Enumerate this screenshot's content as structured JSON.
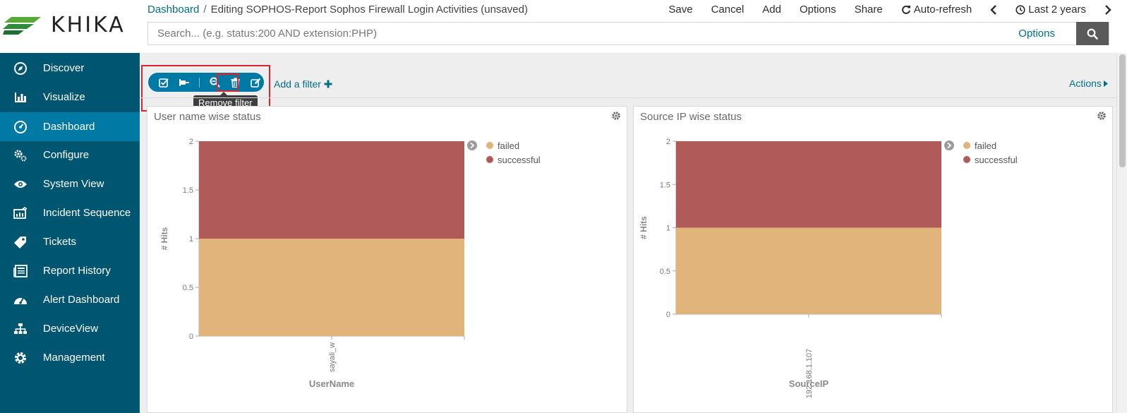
{
  "logo": {
    "text": "KHIKA"
  },
  "breadcrumb": {
    "root": "Dashboard",
    "separator": "/",
    "current": "Editing SOPHOS-Report Sophos Firewall Login Activities (unsaved)"
  },
  "top_menu": {
    "save": "Save",
    "cancel": "Cancel",
    "add": "Add",
    "options": "Options",
    "share": "Share",
    "auto_refresh": "Auto-refresh",
    "time_range": "Last 2 years"
  },
  "search": {
    "placeholder": "Search... (e.g. status:200 AND extension:PHP)",
    "options_label": "Options",
    "button_icon": "search-icon"
  },
  "sidebar": {
    "items": [
      {
        "label": "Discover",
        "icon": "compass-icon",
        "active": false
      },
      {
        "label": "Visualize",
        "icon": "bar-chart-icon",
        "active": false
      },
      {
        "label": "Dashboard",
        "icon": "dashboard-icon",
        "active": true
      },
      {
        "label": "Configure",
        "icon": "cogs-icon",
        "active": false
      },
      {
        "label": "System View",
        "icon": "eye-icon",
        "active": false
      },
      {
        "label": "Incident Sequence",
        "icon": "incident-chart-icon",
        "active": false
      },
      {
        "label": "Tickets",
        "icon": "tag-icon",
        "active": false
      },
      {
        "label": "Report History",
        "icon": "newspaper-icon",
        "active": false
      },
      {
        "label": "Alert Dashboard",
        "icon": "gauge-icon",
        "active": false
      },
      {
        "label": "DeviceView",
        "icon": "sitemap-icon",
        "active": false
      },
      {
        "label": "Management",
        "icon": "gear-icon",
        "active": false
      }
    ]
  },
  "filter": {
    "tooltip": "Remove filter",
    "add_filter_label": "Add a filter",
    "actions_label": "Actions"
  },
  "colors": {
    "failed": "#e0b47b",
    "successful": "#b05b5a",
    "sidebar_bg": "#005571",
    "active_nav": "#0079a5",
    "link": "#006e8a"
  },
  "chart_data": [
    {
      "type": "bar",
      "stacked": true,
      "title": "User name wise status",
      "xlabel": "UserName",
      "ylabel": "# Hits",
      "ylim": [
        0,
        2
      ],
      "yticks": [
        "0",
        "0.5",
        "1",
        "1.5",
        "2"
      ],
      "categories": [
        "sayali_w"
      ],
      "series": [
        {
          "name": "failed",
          "values": [
            1
          ]
        },
        {
          "name": "successful",
          "values": [
            1
          ]
        }
      ],
      "legend_position": "top-right"
    },
    {
      "type": "bar",
      "stacked": true,
      "title": "Source IP wise status",
      "xlabel": "SourceIP",
      "ylabel": "# Hits",
      "ylim": [
        0,
        2
      ],
      "yticks": [
        "0",
        "0.5",
        "1",
        "1.5",
        "2"
      ],
      "categories": [
        "192.168.1.107"
      ],
      "series": [
        {
          "name": "failed",
          "values": [
            1
          ]
        },
        {
          "name": "successful",
          "values": [
            1
          ]
        }
      ],
      "legend_position": "top-right"
    }
  ]
}
